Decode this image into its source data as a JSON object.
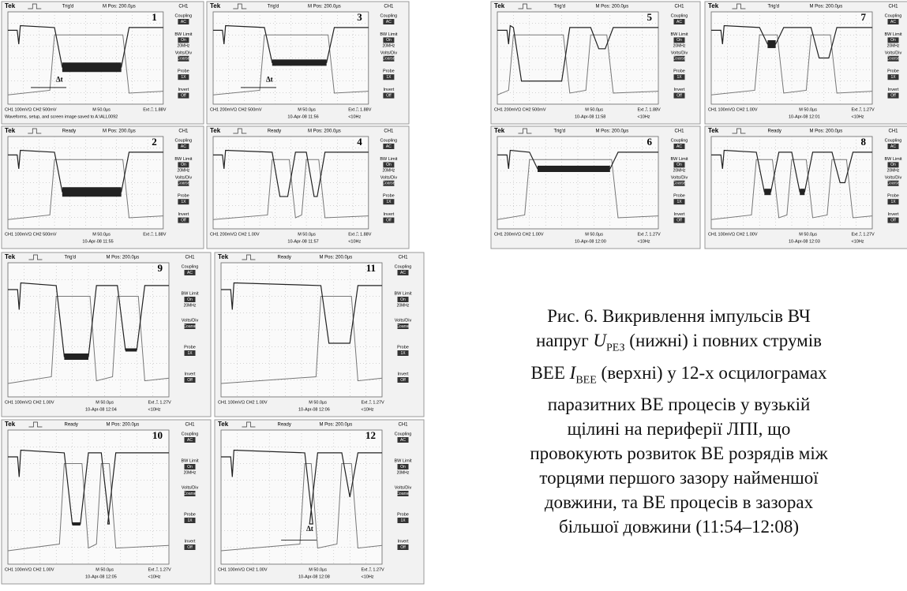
{
  "scope": {
    "brand": "Tek",
    "mpos": "M Pos: 200.0µs",
    "channel": "CH1",
    "mtime": "M 50.0µs",
    "dt": "Δt",
    "menu": [
      {
        "label": "Coupling",
        "value": "AC"
      },
      {
        "label": "BW Limit",
        "value": "On",
        "note": "20MHz"
      },
      {
        "label": "Volts/Div",
        "value": "Coarse"
      },
      {
        "label": "Probe",
        "value": "1X"
      },
      {
        "label": "Invert",
        "value": "Off"
      }
    ]
  },
  "panels": [
    {
      "number": "1",
      "status": "Trig'd",
      "ch": "CH1 100mVΩ CH2 500mV",
      "ext": "Ext ⎍ 1.88V",
      "date": "Waveforms, setup, and screen image saved to A:\\ALL0092"
    },
    {
      "number": "2",
      "status": "Ready",
      "ch": "CH1 100mVΩ CH2 500mV",
      "ext": "Ext ⎍ 1.88V",
      "date": "10-Apr-08 11:55"
    },
    {
      "number": "3",
      "status": "Trig'd",
      "ch": "CH1 200mVΩ CH2 500mV",
      "ext": "Ext ⎍ 1.88V",
      "date": "10-Apr-08 11:56",
      "freq": "<10Hz"
    },
    {
      "number": "4",
      "status": "Ready",
      "ch": "CH1 200mVΩ CH2 1.00V",
      "ext": "Ext ⎍ 1.88V",
      "date": "10-Apr-08 11:57",
      "freq": "<10Hz"
    },
    {
      "number": "5",
      "status": "Trig'd",
      "ch": "CH1 200mVΩ CH2 500mV",
      "ext": "Ext ⎍ 1.88V",
      "date": "10-Apr-08 11:58",
      "freq": "<10Hz"
    },
    {
      "number": "6",
      "status": "Trig'd",
      "ch": "CH1 200mVΩ CH2 1.00V",
      "ext": "Ext ⎍ 1.27V",
      "date": "10-Apr-08 12:00",
      "freq": "<10Hz"
    },
    {
      "number": "7",
      "status": "Trig'd",
      "ch": "CH1 100mVΩ CH2 1.00V",
      "ext": "Ext ⎍ 1.27V",
      "date": "10-Apr-08 12:01",
      "freq": "<10Hz"
    },
    {
      "number": "8",
      "status": "Ready",
      "ch": "CH1 100mVΩ CH2 1.00V",
      "ext": "Ext ⎍ 1.27V",
      "date": "10-Apr-08 12:03",
      "freq": "<10Hz"
    },
    {
      "number": "9",
      "status": "Trig'd",
      "ch": "CH1 100mVΩ CH2 1.00V",
      "ext": "Ext ⎍ 1.27V",
      "date": "10-Apr-08 12:04",
      "freq": "<10Hz"
    },
    {
      "number": "10",
      "status": "Ready",
      "ch": "CH1 100mVΩ CH2 1.00V",
      "ext": "Ext ⎍ 1.27V",
      "date": "10-Apr-08 12:05",
      "freq": "<10Hz"
    },
    {
      "number": "11",
      "status": "Ready",
      "ch": "CH1 100mVΩ CH2 1.00V",
      "ext": "Ext ⎍ 1.27V",
      "date": "10-Apr-08 12:06",
      "freq": "<10Hz"
    },
    {
      "number": "12",
      "status": "Ready",
      "ch": "CH1 100mVΩ CH2 1.00V",
      "ext": "Ext ⎍ 1.27V",
      "date": "10-Apr-08 12:08",
      "freq": "<10Hz"
    }
  ],
  "caption": {
    "line1": "Рис. 6. Викривлення імпульсів ВЧ",
    "line2": [
      "напруг ",
      "U",
      "РЕЗ",
      " (нижні) і повних струмів"
    ],
    "line3": [
      "ВЕЕ ",
      "I",
      "ВЕЕ",
      " (верхні) у 12-х осцилограмах"
    ],
    "line4": "паразитних ВЕ процесів у вузькій",
    "line5": "щілині на периферії ЛПІ, що",
    "line6": "провокують розвиток ВЕ розрядів між",
    "line7": "торцями першого зазору найменшої",
    "line8": "довжини, та ВЕ процесів в зазорах",
    "line9": "більшої довжини (11:54–12:08)"
  }
}
